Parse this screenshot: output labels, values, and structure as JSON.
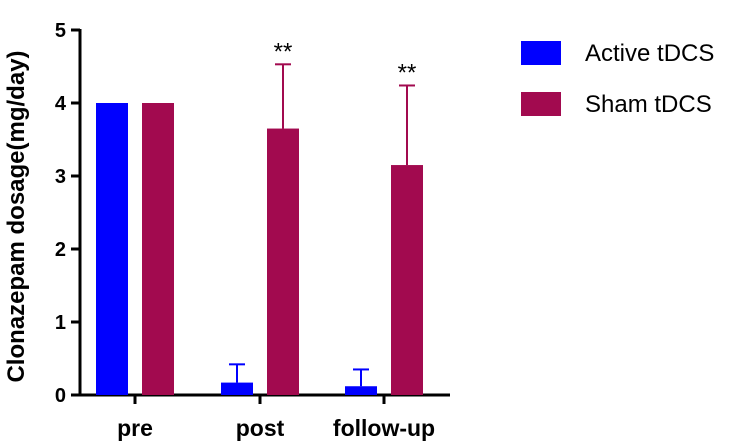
{
  "chart_data": {
    "type": "bar",
    "categories": [
      "pre",
      "post",
      "follow-up"
    ],
    "series": [
      {
        "name": "Active tDCS",
        "values": [
          4.0,
          0.17,
          0.12
        ],
        "error": [
          0,
          0.25,
          0.23
        ],
        "color": "#0000ff"
      },
      {
        "name": "Sham tDCS",
        "values": [
          4.0,
          3.65,
          3.15
        ],
        "error": [
          0,
          0.88,
          1.09
        ],
        "color": "#a20a4f"
      }
    ],
    "annotations": [
      {
        "category": "post",
        "series": "Sham tDCS",
        "text": "**"
      },
      {
        "category": "follow-up",
        "series": "Sham tDCS",
        "text": "**"
      }
    ],
    "ylabel": "Clonazepam dosage(mg/day)",
    "xlabel": "",
    "ylim": [
      0,
      5
    ],
    "yticks": [
      "0",
      "1",
      "2",
      "3",
      "4",
      "5"
    ],
    "grid": false,
    "legend_position": "top-right"
  }
}
